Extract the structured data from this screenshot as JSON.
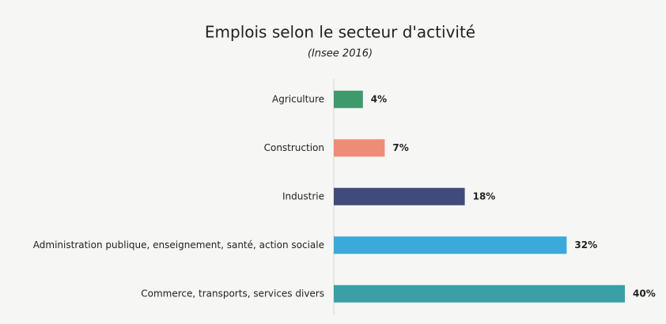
{
  "chart_data": {
    "type": "bar",
    "orientation": "horizontal",
    "title": "Emplois selon le secteur d'activité",
    "subtitle": "(Insee 2016)",
    "categories": [
      "Agriculture",
      "Construction",
      "Industrie",
      "Administration publique, enseignement, santé, action sociale",
      "Commerce, transports, services divers"
    ],
    "values": [
      4,
      7,
      18,
      32,
      40
    ],
    "value_labels": [
      "4%",
      "7%",
      "18%",
      "32%",
      "40%"
    ],
    "colors": [
      "#3e9a6c",
      "#ef8c78",
      "#404b7c",
      "#3ba9d9",
      "#3aa0a6"
    ]
  }
}
